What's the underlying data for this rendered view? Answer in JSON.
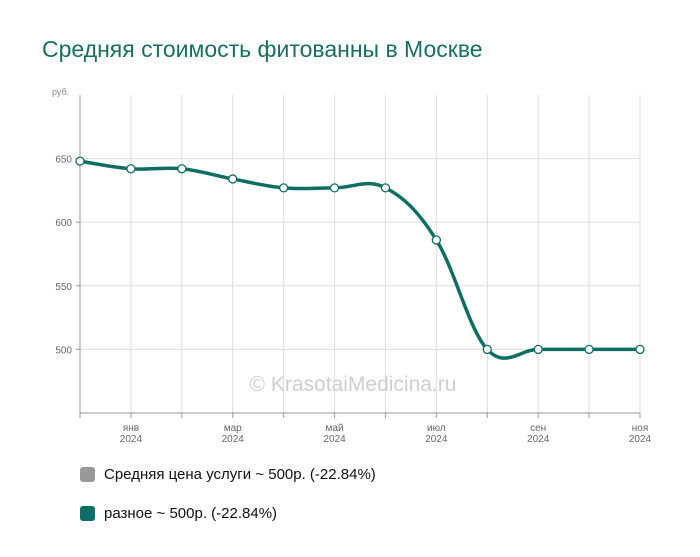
{
  "title": "Средняя стоимость фитованны в Москве",
  "watermark": "© KrasotaiMedicina.ru",
  "legend": [
    {
      "label": "Средняя цена услуги ~ 500р. (-22.84%)",
      "color": "#999999"
    },
    {
      "label": "разное ~ 500р. (-22.84%)",
      "color": "#0e6e63"
    }
  ],
  "chart_data": {
    "type": "line",
    "title": "Средняя стоимость фитованны в Москве",
    "ylabel": "руб.",
    "xlabel": "",
    "ylim": [
      450,
      700
    ],
    "yticks": [
      500,
      550,
      600,
      650
    ],
    "grid": true,
    "legend_position": "bottom-left",
    "x": [
      "2023-12",
      "2024-01",
      "2024-02",
      "2024-03",
      "2024-04",
      "2024-05",
      "2024-06",
      "2024-07",
      "2024-08",
      "2024-09",
      "2024-10",
      "2024-11"
    ],
    "xtick_labels": [
      {
        "month": "янв",
        "year": "2024",
        "at": "2024-01"
      },
      {
        "month": "мар",
        "year": "2024",
        "at": "2024-03"
      },
      {
        "month": "май",
        "year": "2024",
        "at": "2024-05"
      },
      {
        "month": "июл",
        "year": "2024",
        "at": "2024-07"
      },
      {
        "month": "сен",
        "year": "2024",
        "at": "2024-09"
      },
      {
        "month": "ноя",
        "year": "2024",
        "at": "2024-11"
      }
    ],
    "series": [
      {
        "name": "Средняя цена услуги ~ 500р. (-22.84%)",
        "color": "#999999",
        "values": [
          648,
          642,
          642,
          634,
          627,
          627,
          627,
          586,
          500,
          500,
          500,
          500
        ]
      },
      {
        "name": "разное ~ 500р. (-22.84%)",
        "color": "#0e6e63",
        "values": [
          648,
          642,
          642,
          634,
          627,
          627,
          627,
          586,
          500,
          500,
          500,
          500
        ]
      }
    ]
  }
}
